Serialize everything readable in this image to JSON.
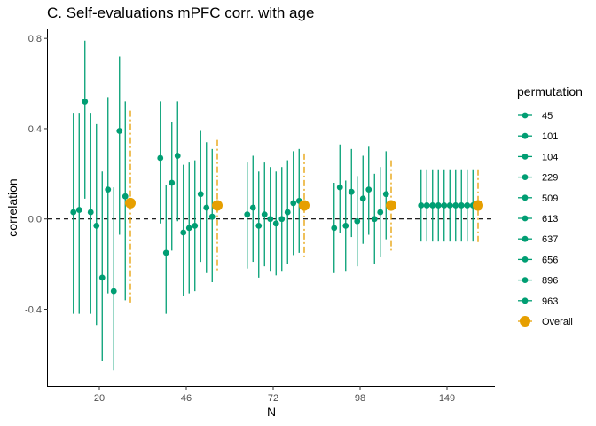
{
  "chart_data": {
    "type": "scatter",
    "title": "C. Self-evaluations mPFC corr. with age",
    "xlabel": "N",
    "ylabel": "correlation",
    "x_categories": [
      "20",
      "46",
      "72",
      "98",
      "149"
    ],
    "ylim": [
      -0.74,
      0.84
    ],
    "yticks": [
      -0.4,
      0.0,
      0.4,
      0.8
    ],
    "ytick_labels": [
      "-0.4",
      "0.0",
      "0.4",
      "0.8"
    ],
    "reference_line": 0.0,
    "grid": false,
    "legend_title": "permutation",
    "legend_position": "right",
    "permutations": [
      "45",
      "101",
      "104",
      "229",
      "509",
      "613",
      "637",
      "656",
      "896",
      "963"
    ],
    "overall_label": "Overall",
    "colors": {
      "permutation": "#009E73",
      "overall": "#E69F00",
      "reference": "#000000"
    },
    "groups": [
      {
        "n": "20",
        "points": [
          {
            "permutation": "45",
            "r": 0.03,
            "lo": -0.42,
            "hi": 0.47
          },
          {
            "permutation": "101",
            "r": 0.04,
            "lo": -0.42,
            "hi": 0.47
          },
          {
            "permutation": "104",
            "r": 0.52,
            "lo": 0.09,
            "hi": 0.79
          },
          {
            "permutation": "229",
            "r": 0.03,
            "lo": -0.42,
            "hi": 0.47
          },
          {
            "permutation": "509",
            "r": -0.03,
            "lo": -0.47,
            "hi": 0.42
          },
          {
            "permutation": "613",
            "r": -0.26,
            "lo": -0.63,
            "hi": 0.21
          },
          {
            "permutation": "637",
            "r": 0.13,
            "lo": -0.33,
            "hi": 0.54
          },
          {
            "permutation": "656",
            "r": -0.32,
            "lo": -0.67,
            "hi": 0.14
          },
          {
            "permutation": "896",
            "r": 0.39,
            "lo": -0.07,
            "hi": 0.72
          },
          {
            "permutation": "963",
            "r": 0.1,
            "lo": -0.36,
            "hi": 0.52
          }
        ],
        "overall": {
          "r": 0.07,
          "lo": -0.37,
          "hi": 0.48
        }
      },
      {
        "n": "46",
        "points": [
          {
            "permutation": "45",
            "r": 0.27,
            "lo": -0.02,
            "hi": 0.52
          },
          {
            "permutation": "101",
            "r": -0.15,
            "lo": -0.42,
            "hi": 0.15
          },
          {
            "permutation": "104",
            "r": 0.16,
            "lo": -0.14,
            "hi": 0.43
          },
          {
            "permutation": "229",
            "r": 0.28,
            "lo": -0.01,
            "hi": 0.52
          },
          {
            "permutation": "509",
            "r": -0.06,
            "lo": -0.34,
            "hi": 0.24
          },
          {
            "permutation": "613",
            "r": -0.04,
            "lo": -0.33,
            "hi": 0.25
          },
          {
            "permutation": "637",
            "r": -0.03,
            "lo": -0.32,
            "hi": 0.26
          },
          {
            "permutation": "656",
            "r": 0.11,
            "lo": -0.19,
            "hi": 0.39
          },
          {
            "permutation": "896",
            "r": 0.05,
            "lo": -0.24,
            "hi": 0.34
          },
          {
            "permutation": "963",
            "r": 0.01,
            "lo": -0.28,
            "hi": 0.31
          }
        ],
        "overall": {
          "r": 0.06,
          "lo": -0.23,
          "hi": 0.35
        }
      },
      {
        "n": "72",
        "points": [
          {
            "permutation": "45",
            "r": 0.02,
            "lo": -0.22,
            "hi": 0.25
          },
          {
            "permutation": "101",
            "r": 0.05,
            "lo": -0.19,
            "hi": 0.28
          },
          {
            "permutation": "104",
            "r": -0.03,
            "lo": -0.26,
            "hi": 0.21
          },
          {
            "permutation": "229",
            "r": 0.02,
            "lo": -0.21,
            "hi": 0.25
          },
          {
            "permutation": "509",
            "r": 0.0,
            "lo": -0.23,
            "hi": 0.23
          },
          {
            "permutation": "613",
            "r": -0.02,
            "lo": -0.25,
            "hi": 0.21
          },
          {
            "permutation": "637",
            "r": 0.0,
            "lo": -0.23,
            "hi": 0.23
          },
          {
            "permutation": "656",
            "r": 0.03,
            "lo": -0.2,
            "hi": 0.26
          },
          {
            "permutation": "896",
            "r": 0.07,
            "lo": -0.16,
            "hi": 0.3
          },
          {
            "permutation": "963",
            "r": 0.08,
            "lo": -0.15,
            "hi": 0.31
          }
        ],
        "overall": {
          "r": 0.06,
          "lo": -0.18,
          "hi": 0.29
        }
      },
      {
        "n": "98",
        "points": [
          {
            "permutation": "45",
            "r": -0.04,
            "lo": -0.24,
            "hi": 0.16
          },
          {
            "permutation": "101",
            "r": 0.14,
            "lo": -0.06,
            "hi": 0.33
          },
          {
            "permutation": "104",
            "r": -0.03,
            "lo": -0.23,
            "hi": 0.17
          },
          {
            "permutation": "229",
            "r": 0.12,
            "lo": -0.08,
            "hi": 0.31
          },
          {
            "permutation": "509",
            "r": -0.01,
            "lo": -0.21,
            "hi": 0.19
          },
          {
            "permutation": "613",
            "r": 0.09,
            "lo": -0.11,
            "hi": 0.28
          },
          {
            "permutation": "637",
            "r": 0.13,
            "lo": -0.07,
            "hi": 0.32
          },
          {
            "permutation": "656",
            "r": 0.0,
            "lo": -0.2,
            "hi": 0.2
          },
          {
            "permutation": "896",
            "r": 0.03,
            "lo": -0.17,
            "hi": 0.23
          },
          {
            "permutation": "963",
            "r": 0.11,
            "lo": -0.09,
            "hi": 0.3
          }
        ],
        "overall": {
          "r": 0.06,
          "lo": -0.14,
          "hi": 0.26
        }
      },
      {
        "n": "149",
        "points": [
          {
            "permutation": "45",
            "r": 0.06,
            "lo": -0.1,
            "hi": 0.22
          },
          {
            "permutation": "101",
            "r": 0.06,
            "lo": -0.1,
            "hi": 0.22
          },
          {
            "permutation": "104",
            "r": 0.06,
            "lo": -0.1,
            "hi": 0.22
          },
          {
            "permutation": "229",
            "r": 0.06,
            "lo": -0.1,
            "hi": 0.22
          },
          {
            "permutation": "509",
            "r": 0.06,
            "lo": -0.1,
            "hi": 0.22
          },
          {
            "permutation": "613",
            "r": 0.06,
            "lo": -0.1,
            "hi": 0.22
          },
          {
            "permutation": "637",
            "r": 0.06,
            "lo": -0.1,
            "hi": 0.22
          },
          {
            "permutation": "656",
            "r": 0.06,
            "lo": -0.1,
            "hi": 0.22
          },
          {
            "permutation": "896",
            "r": 0.06,
            "lo": -0.1,
            "hi": 0.22
          },
          {
            "permutation": "963",
            "r": 0.06,
            "lo": -0.1,
            "hi": 0.22
          }
        ],
        "overall": {
          "r": 0.06,
          "lo": -0.11,
          "hi": 0.22
        }
      }
    ]
  }
}
